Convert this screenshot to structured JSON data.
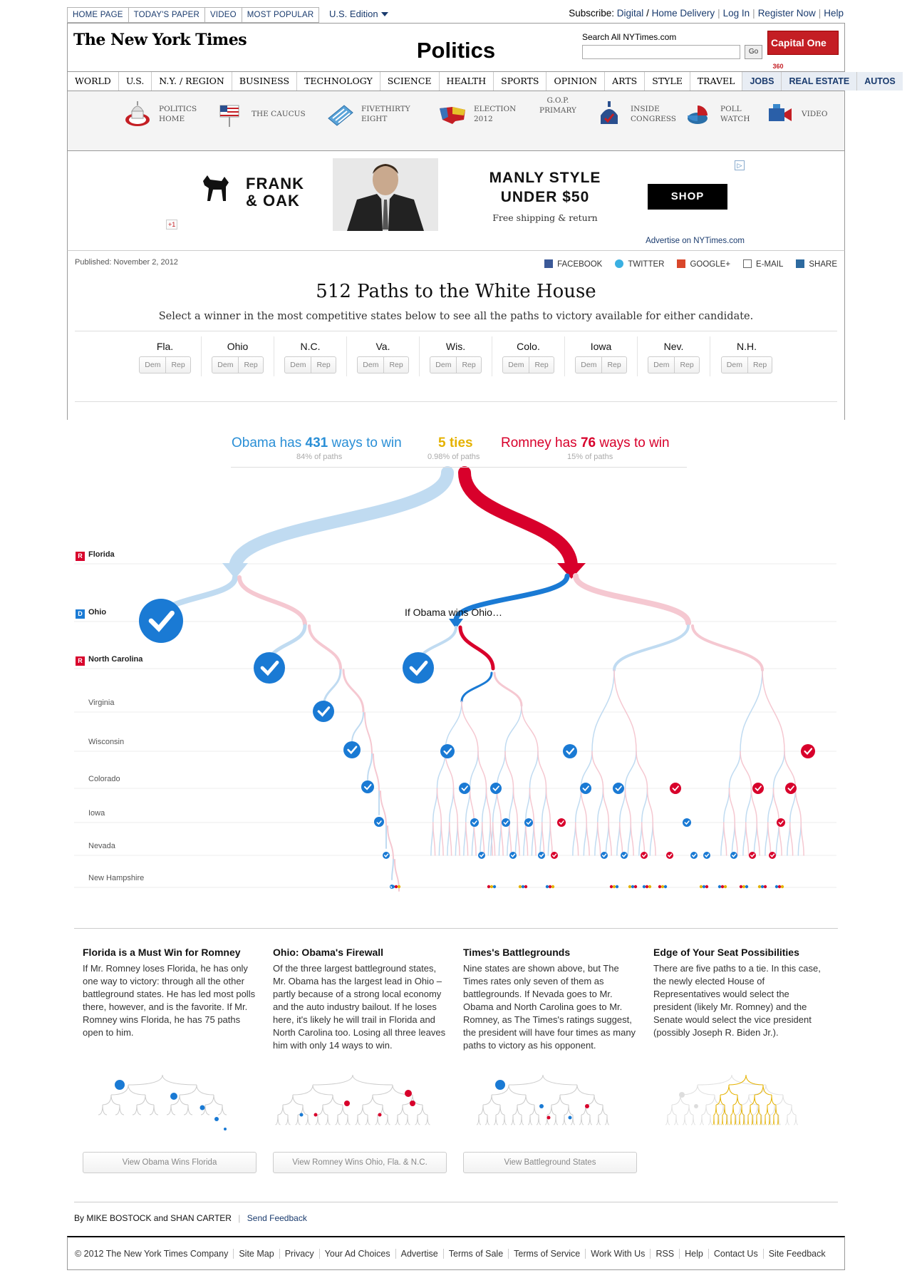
{
  "topnav": [
    "HOME PAGE",
    "TODAY'S PAPER",
    "VIDEO",
    "MOST POPULAR"
  ],
  "edition": "U.S. Edition",
  "subscribe": {
    "label": "Subscribe:",
    "digital": "Digital",
    "home": "Home Delivery",
    "login": "Log In",
    "register": "Register Now",
    "help": "Help"
  },
  "logo": "The New York Times",
  "section_title": "Politics",
  "search": {
    "label": "Search All NYTimes.com",
    "go": "Go",
    "value": ""
  },
  "capital_one": {
    "text": "Capital One",
    "badge": "360"
  },
  "secnav": [
    "WORLD",
    "U.S.",
    "N.Y. / REGION",
    "BUSINESS",
    "TECHNOLOGY",
    "SCIENCE",
    "HEALTH",
    "SPORTS",
    "OPINION",
    "ARTS",
    "STYLE",
    "TRAVEL",
    "JOBS",
    "REAL ESTATE",
    "AUTOS"
  ],
  "subnav": [
    {
      "label": "POLITICS\nHOME",
      "icon": "capitol-icon"
    },
    {
      "label": "THE CAUCUS",
      "icon": "flag-icon"
    },
    {
      "label": "FIVETHIRTY\nEIGHT",
      "icon": "calculator-icon"
    },
    {
      "label": "ELECTION\n2012",
      "icon": "us-map-icon"
    },
    {
      "label": "G.O.P.\nPRIMARY",
      "icon": ""
    },
    {
      "label": "INSIDE\nCONGRESS",
      "icon": "capitol-dome-icon"
    },
    {
      "label": "POLL\nWATCH",
      "icon": "pie-chart-icon"
    },
    {
      "label": "VIDEO",
      "icon": "video-camera-icon"
    }
  ],
  "ad": {
    "brand": "FRANK\n& OAK",
    "headline": "MANLY STYLE\nUNDER $50",
    "sub": "Free shipping & return",
    "cta": "SHOP",
    "gplus": "+1",
    "advertise": "Advertise on NYTimes.com"
  },
  "published": "Published: November 2, 2012",
  "share": [
    "FACEBOOK",
    "TWITTER",
    "GOOGLE+",
    "E-MAIL",
    "SHARE"
  ],
  "title": "512 Paths to the White House",
  "dek": "Select a winner in the most competitive states below to see all the paths to victory available for either candidate.",
  "states": [
    "Fla.",
    "Ohio",
    "N.C.",
    "Va.",
    "Wis.",
    "Colo.",
    "Iowa",
    "Nev.",
    "N.H."
  ],
  "btn_dem": "Dem",
  "btn_rep": "Rep",
  "summary": {
    "obama_pre": "Obama has",
    "obama_n": "431",
    "obama_post": "ways to win",
    "obama_pct": "84% of paths",
    "ties": "5 ties",
    "ties_pct": "0.98% of paths",
    "romney_pre": "Romney has",
    "romney_n": "76",
    "romney_post": "ways to win",
    "romney_pct": "15% of paths"
  },
  "rows": [
    {
      "name": "Florida",
      "badge": "R"
    },
    {
      "name": "Ohio",
      "badge": "D"
    },
    {
      "name": "North Carolina",
      "badge": "R"
    },
    {
      "name": "Virginia",
      "badge": ""
    },
    {
      "name": "Wisconsin",
      "badge": ""
    },
    {
      "name": "Colorado",
      "badge": ""
    },
    {
      "name": "Iowa",
      "badge": ""
    },
    {
      "name": "Nevada",
      "badge": ""
    },
    {
      "name": "New Hampshire",
      "badge": ""
    }
  ],
  "if_obama": "If Obama wins Ohio…",
  "colors": {
    "dem": "#1a7ad4",
    "rep": "#d8002b",
    "dem_light": "#c0dbf1",
    "rep_light": "#f5c8d1",
    "tie": "#e5b200"
  },
  "notes": [
    {
      "title": "Florida is a Must Win for Romney",
      "body": "If Mr. Romney loses Florida, he has only one way to victory: through all the other battleground states. He has led most polls there, however, and is the favorite. If Mr. Romney wins Florida, he has 75 paths open to him.",
      "button": "View Obama Wins Florida"
    },
    {
      "title": "Ohio: Obama's Firewall",
      "body": "Of the three largest battleground states, Mr. Obama has the largest lead in Ohio – partly because of a strong local economy and the auto industry bailout. If he loses here, it's likely he will trail in Florida and North Carolina too. Losing all three leaves him with only 14 ways to win.",
      "button": "View Romney Wins Ohio, Fla. & N.C."
    },
    {
      "title": "Times's Battlegrounds",
      "body": "Nine states are shown above, but The Times rates only seven of them as battlegrounds. If Nevada goes to Mr. Obama and North Carolina goes to Mr. Romney, as The Times's ratings suggest, the president will have four times as many paths to victory as his opponent.",
      "button": "View Battleground States"
    },
    {
      "title": "Edge of Your Seat Possibilities",
      "body": "There are five paths to a tie. In this case, the newly elected House of Representatives would select the president (likely Mr. Romney) and the Senate would select the vice president (possibly Joseph R. Biden Jr.).",
      "button": ""
    }
  ],
  "byline": {
    "by": "By MIKE BOSTOCK and SHAN CARTER",
    "feedback": "Send Feedback"
  },
  "footer": [
    "© 2012 The New York Times Company",
    "Site Map",
    "Privacy",
    "Your Ad Choices",
    "Advertise",
    "Terms of Sale",
    "Terms of Service",
    "Work With Us",
    "RSS",
    "Help",
    "Contact Us",
    "Site Feedback"
  ]
}
